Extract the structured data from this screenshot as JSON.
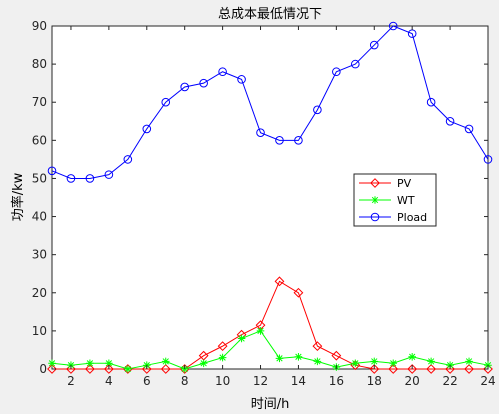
{
  "chart_data": {
    "type": "line",
    "title": "总成本最低情况下",
    "xlabel": "时间/h",
    "ylabel": "功率/kw",
    "xlim": [
      1,
      24
    ],
    "ylim": [
      0,
      90
    ],
    "xticks": [
      2,
      4,
      6,
      8,
      10,
      12,
      14,
      16,
      18,
      20,
      22,
      24
    ],
    "yticks": [
      0,
      10,
      20,
      30,
      40,
      50,
      60,
      70,
      80,
      90
    ],
    "grid": false,
    "legend_position": "center-right",
    "x": [
      1,
      2,
      3,
      4,
      5,
      6,
      7,
      8,
      9,
      10,
      11,
      12,
      13,
      14,
      15,
      16,
      17,
      18,
      19,
      20,
      21,
      22,
      23,
      24
    ],
    "series": [
      {
        "name": "PV",
        "color": "#ff0000",
        "marker": "diamond",
        "values": [
          0,
          0,
          0,
          0,
          0,
          0,
          0,
          0,
          3.5,
          6,
          9,
          11.5,
          23,
          20,
          6,
          3.5,
          1,
          0,
          0,
          0,
          0,
          0,
          0,
          0
        ]
      },
      {
        "name": "WT",
        "color": "#00ff00",
        "marker": "asterisk",
        "values": [
          1.5,
          1,
          1.5,
          1.5,
          0,
          1,
          2,
          0,
          1.5,
          3,
          8,
          10,
          2.8,
          3.2,
          2,
          0.5,
          1.5,
          2,
          1.5,
          3.2,
          2,
          1,
          2,
          1
        ]
      },
      {
        "name": "Pload",
        "color": "#0000ff",
        "marker": "circle",
        "values": [
          52,
          50,
          50,
          51,
          55,
          63,
          70,
          74,
          75,
          78,
          76,
          62,
          60,
          60,
          68,
          78,
          80,
          85,
          90,
          88,
          70,
          65,
          63,
          55
        ]
      }
    ]
  }
}
